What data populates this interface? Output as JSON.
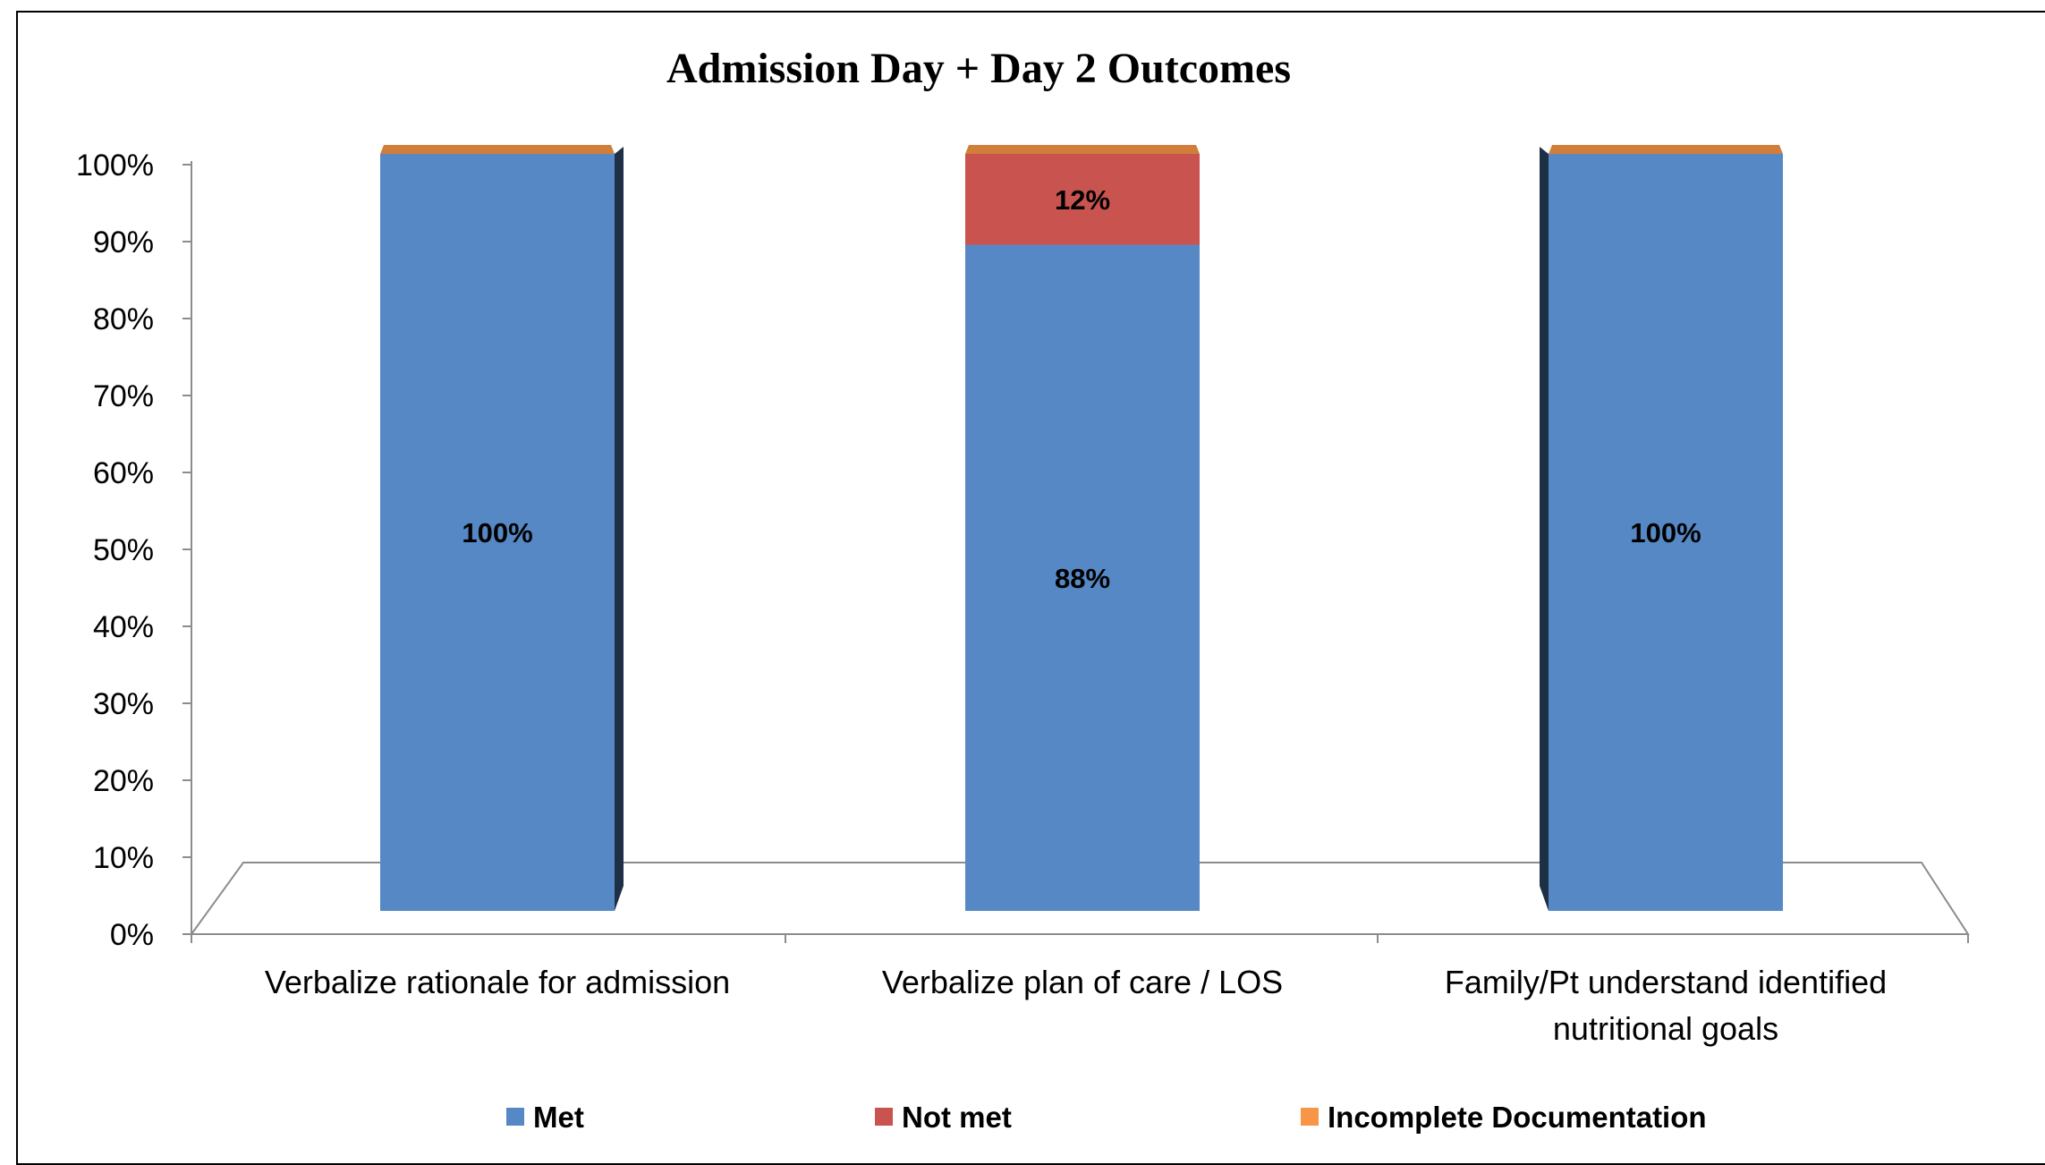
{
  "chart_data": {
    "type": "bar",
    "stacked": true,
    "three_d": true,
    "title": "Admission Day + Day 2 Outcomes",
    "xlabel": "",
    "ylabel": "",
    "ylim": [
      0,
      100
    ],
    "y_ticks": [
      "0%",
      "10%",
      "20%",
      "30%",
      "40%",
      "50%",
      "60%",
      "70%",
      "80%",
      "90%",
      "100%"
    ],
    "grid": false,
    "legend_position": "bottom",
    "categories": [
      [
        "Verbalize rationale for admission"
      ],
      [
        "Verbalize plan of care / LOS"
      ],
      [
        "Family/Pt understand identified",
        "nutritional goals"
      ]
    ],
    "series": [
      {
        "name": "Met",
        "color": "#5588C4",
        "values": [
          100,
          88,
          100
        ],
        "labels": [
          "100%",
          "88%",
          "100%"
        ]
      },
      {
        "name": "Not met",
        "color": "#C9534F",
        "values": [
          0,
          12,
          0
        ],
        "labels": [
          "",
          "12%",
          ""
        ]
      },
      {
        "name": "Incomplete Documentation",
        "color": "#F79646",
        "values": [
          0,
          0,
          0
        ],
        "labels": [
          "",
          "",
          ""
        ]
      }
    ]
  }
}
